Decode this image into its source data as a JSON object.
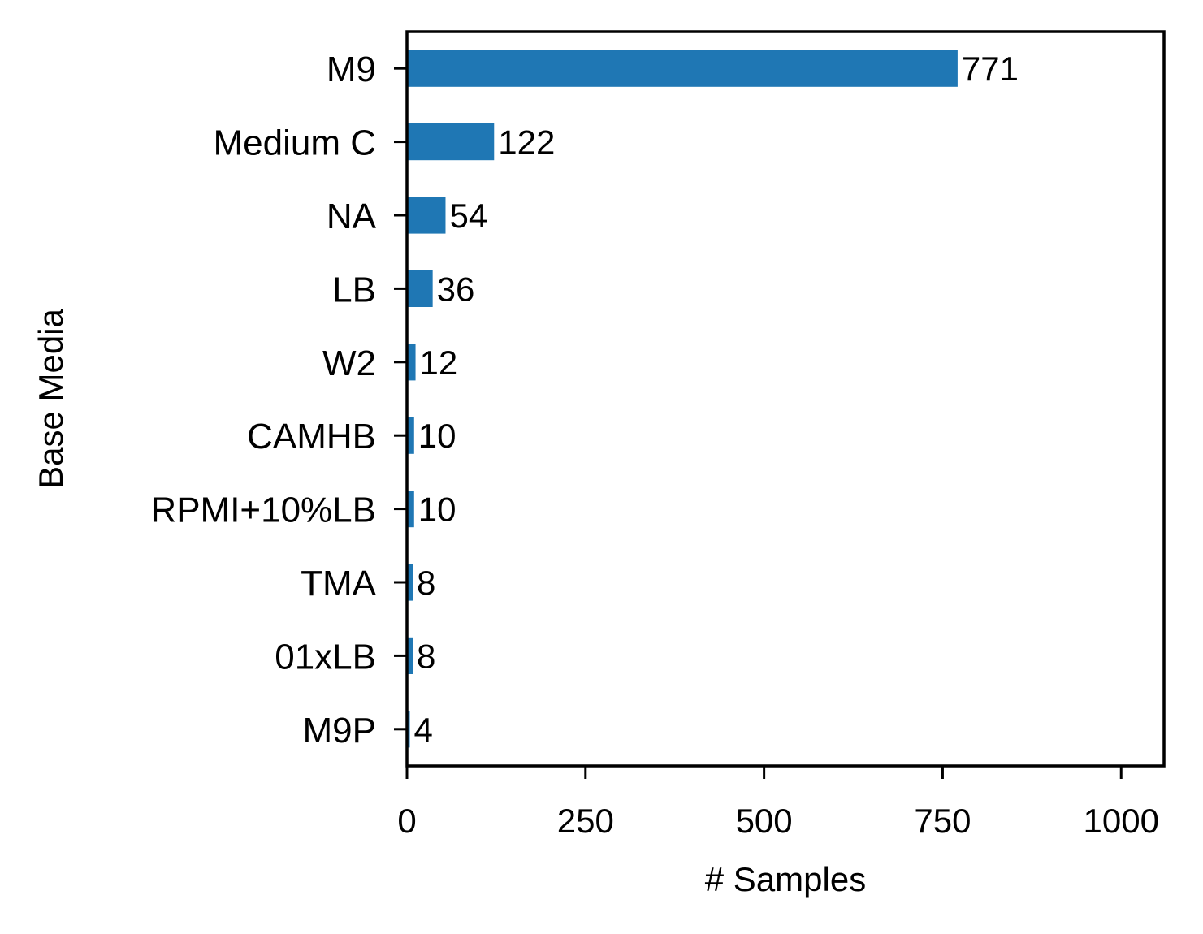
{
  "chart_data": {
    "type": "bar",
    "orientation": "horizontal",
    "categories": [
      "M9",
      "Medium C",
      "NA",
      "LB",
      "W2",
      "CAMHB",
      "RPMI+10%LB",
      "TMA",
      "01xLB",
      "M9P"
    ],
    "values": [
      771,
      122,
      54,
      36,
      12,
      10,
      10,
      8,
      8,
      4
    ],
    "data_labels": [
      "771",
      "122",
      "54",
      "36",
      "12",
      "10",
      "10",
      "8",
      "8",
      "4"
    ],
    "xlabel": "# Samples",
    "ylabel": "Base Media",
    "xlim": [
      0,
      1060
    ],
    "xticks": [
      0,
      250,
      500,
      750,
      1000
    ],
    "xtick_labels": [
      "0",
      "250",
      "500",
      "750",
      "1000"
    ],
    "grid": false,
    "bar_color": "#1f77b4"
  }
}
